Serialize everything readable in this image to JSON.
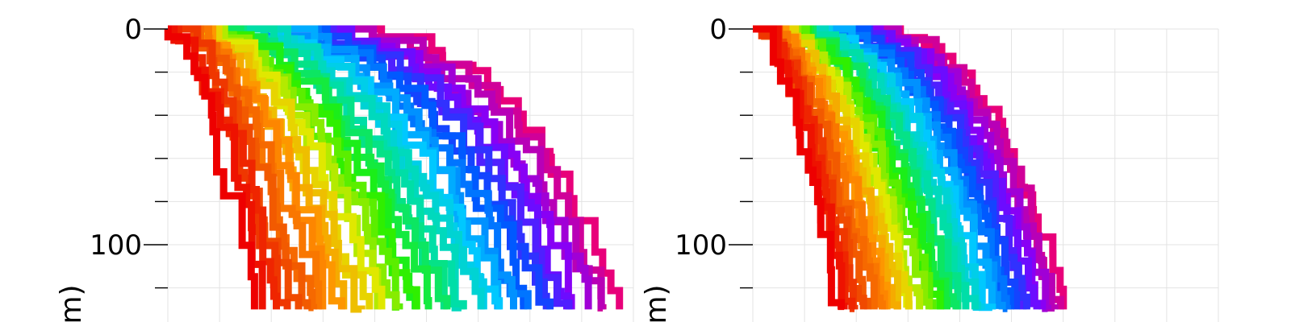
{
  "chart_data": [
    {
      "type": "line",
      "title": "",
      "xlabel": "",
      "ylabel": "(m)",
      "ylim": [
        0,
        130
      ],
      "y_inverted": true,
      "grid": true,
      "y_major_ticks": [
        0,
        100
      ],
      "y_tick_labels": [
        "0",
        "100"
      ],
      "y_minor_ticks": [
        20,
        40,
        60,
        80,
        120
      ],
      "x_grid_count": 9,
      "fan_spread": 1.0,
      "series_count": 40,
      "colormap": [
        "#e8007a",
        "#8000ff",
        "#0050ff",
        "#00c8ff",
        "#00e0a0",
        "#20f000",
        "#e0e800",
        "#ff9000",
        "#f05000",
        "#ee0000"
      ]
    },
    {
      "type": "line",
      "title": "",
      "xlabel": "",
      "ylabel": "(m)",
      "ylim": [
        0,
        130
      ],
      "y_inverted": true,
      "grid": true,
      "y_major_ticks": [
        0,
        100
      ],
      "y_tick_labels": [
        "0",
        "100"
      ],
      "y_minor_ticks": [
        20,
        40,
        60,
        80,
        120
      ],
      "x_grid_count": 9,
      "fan_spread": 0.55,
      "series_count": 40,
      "colormap": [
        "#e8007a",
        "#8000ff",
        "#0050ff",
        "#00c8ff",
        "#00e0a0",
        "#20f000",
        "#e0e800",
        "#ff9000",
        "#f05000",
        "#ee0000"
      ]
    }
  ]
}
